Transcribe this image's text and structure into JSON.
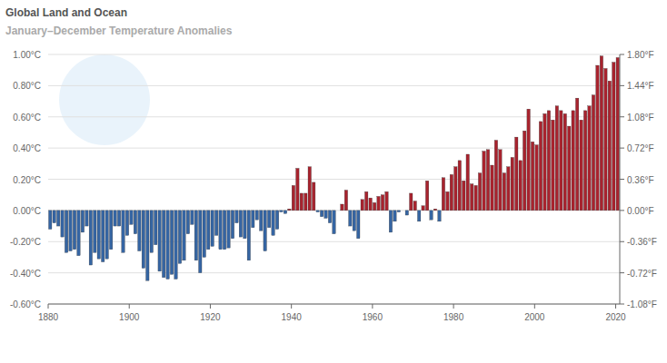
{
  "chart_data": {
    "type": "bar",
    "title": "Global Land and Ocean",
    "subtitle": "January–December Temperature Anomalies",
    "x": [
      1880,
      1881,
      1882,
      1883,
      1884,
      1885,
      1886,
      1887,
      1888,
      1889,
      1890,
      1891,
      1892,
      1893,
      1894,
      1895,
      1896,
      1897,
      1898,
      1899,
      1900,
      1901,
      1902,
      1903,
      1904,
      1905,
      1906,
      1907,
      1908,
      1909,
      1910,
      1911,
      1912,
      1913,
      1914,
      1915,
      1916,
      1917,
      1918,
      1919,
      1920,
      1921,
      1922,
      1923,
      1924,
      1925,
      1926,
      1927,
      1928,
      1929,
      1930,
      1931,
      1932,
      1933,
      1934,
      1935,
      1936,
      1937,
      1938,
      1939,
      1940,
      1941,
      1942,
      1943,
      1944,
      1945,
      1946,
      1947,
      1948,
      1949,
      1950,
      1951,
      1952,
      1953,
      1954,
      1955,
      1956,
      1957,
      1958,
      1959,
      1960,
      1961,
      1962,
      1963,
      1964,
      1965,
      1966,
      1967,
      1968,
      1969,
      1970,
      1971,
      1972,
      1973,
      1974,
      1975,
      1976,
      1977,
      1978,
      1979,
      1980,
      1981,
      1982,
      1983,
      1984,
      1985,
      1986,
      1987,
      1988,
      1989,
      1990,
      1991,
      1992,
      1993,
      1994,
      1995,
      1996,
      1997,
      1998,
      1999,
      2000,
      2001,
      2002,
      2003,
      2004,
      2005,
      2006,
      2007,
      2008,
      2009,
      2010,
      2011,
      2012,
      2013,
      2014,
      2015,
      2016,
      2017,
      2018,
      2019,
      2020
    ],
    "values": [
      -0.12,
      -0.08,
      -0.1,
      -0.17,
      -0.27,
      -0.26,
      -0.25,
      -0.29,
      -0.14,
      -0.1,
      -0.35,
      -0.27,
      -0.31,
      -0.33,
      -0.31,
      -0.25,
      -0.1,
      -0.1,
      -0.27,
      -0.16,
      -0.09,
      -0.15,
      -0.26,
      -0.37,
      -0.45,
      -0.27,
      -0.22,
      -0.39,
      -0.43,
      -0.44,
      -0.41,
      -0.44,
      -0.34,
      -0.32,
      -0.15,
      -0.09,
      -0.32,
      -0.4,
      -0.3,
      -0.25,
      -0.23,
      -0.16,
      -0.25,
      -0.25,
      -0.24,
      -0.18,
      -0.08,
      -0.17,
      -0.18,
      -0.32,
      -0.11,
      -0.06,
      -0.13,
      -0.26,
      -0.11,
      -0.16,
      -0.12,
      -0.01,
      -0.02,
      0.01,
      0.16,
      0.27,
      0.11,
      0.11,
      0.28,
      0.18,
      -0.01,
      -0.04,
      -0.05,
      -0.08,
      -0.15,
      0.0,
      0.04,
      0.13,
      -0.1,
      -0.13,
      -0.18,
      0.07,
      0.12,
      0.08,
      0.05,
      0.09,
      0.1,
      0.12,
      -0.14,
      -0.07,
      -0.01,
      0.0,
      -0.03,
      0.11,
      0.06,
      -0.07,
      0.03,
      0.19,
      -0.06,
      0.01,
      -0.07,
      0.21,
      0.12,
      0.23,
      0.28,
      0.32,
      0.19,
      0.36,
      0.17,
      0.16,
      0.24,
      0.38,
      0.39,
      0.29,
      0.45,
      0.39,
      0.24,
      0.28,
      0.34,
      0.47,
      0.32,
      0.51,
      0.65,
      0.44,
      0.42,
      0.57,
      0.62,
      0.64,
      0.58,
      0.67,
      0.64,
      0.62,
      0.54,
      0.64,
      0.72,
      0.58,
      0.64,
      0.67,
      0.74,
      0.93,
      0.99,
      0.91,
      0.83,
      0.95,
      0.98
    ],
    "colors": [
      "#3565a3",
      "#3565a3",
      "#3565a3",
      "#3565a3",
      "#3565a3",
      "#3565a3",
      "#3565a3",
      "#3565a3",
      "#3565a3",
      "#3565a3",
      "#3565a3",
      "#3565a3",
      "#3565a3",
      "#3565a3",
      "#3565a3",
      "#3565a3",
      "#3565a3",
      "#3565a3",
      "#3565a3",
      "#3565a3",
      "#3565a3",
      "#3565a3",
      "#3565a3",
      "#3565a3",
      "#3565a3",
      "#3565a3",
      "#3565a3",
      "#3565a3",
      "#3565a3",
      "#3565a3",
      "#3565a3",
      "#3565a3",
      "#3565a3",
      "#3565a3",
      "#3565a3",
      "#3565a3",
      "#3565a3",
      "#3565a3",
      "#3565a3",
      "#3565a3",
      "#3565a3",
      "#3565a3",
      "#3565a3",
      "#3565a3",
      "#3565a3",
      "#3565a3",
      "#3565a3",
      "#3565a3",
      "#3565a3",
      "#3565a3",
      "#3565a3",
      "#3565a3",
      "#3565a3",
      "#3565a3",
      "#3565a3",
      "#3565a3",
      "#3565a3",
      "#3565a3",
      "#3565a3",
      "#a8232e",
      "#a8232e",
      "#a8232e",
      "#a8232e",
      "#a8232e",
      "#a8232e",
      "#a8232e",
      "#3565a3",
      "#3565a3",
      "#3565a3",
      "#3565a3",
      "#3565a3",
      "#a8232e",
      "#a8232e",
      "#a8232e",
      "#3565a3",
      "#3565a3",
      "#3565a3",
      "#a8232e",
      "#a8232e",
      "#a8232e",
      "#a8232e",
      "#a8232e",
      "#a8232e",
      "#a8232e",
      "#3565a3",
      "#3565a3",
      "#3565a3",
      "#a8232e",
      "#3565a3",
      "#a8232e",
      "#a8232e",
      "#3565a3",
      "#a8232e",
      "#a8232e",
      "#3565a3",
      "#a8232e",
      "#3565a3",
      "#a8232e",
      "#a8232e",
      "#a8232e",
      "#a8232e",
      "#a8232e",
      "#a8232e",
      "#a8232e",
      "#a8232e",
      "#a8232e",
      "#a8232e",
      "#a8232e",
      "#a8232e",
      "#a8232e",
      "#a8232e",
      "#a8232e",
      "#a8232e",
      "#a8232e",
      "#a8232e",
      "#a8232e",
      "#a8232e",
      "#a8232e",
      "#a8232e",
      "#a8232e",
      "#a8232e",
      "#a8232e",
      "#a8232e",
      "#a8232e",
      "#a8232e",
      "#a8232e",
      "#a8232e",
      "#a8232e",
      "#a8232e",
      "#a8232e",
      "#a8232e",
      "#a8232e",
      "#a8232e",
      "#a8232e",
      "#a8232e",
      "#a8232e",
      "#a8232e",
      "#a8232e",
      "#a8232e",
      "#a8232e",
      "#a8232e"
    ],
    "xlim": [
      1880,
      2021
    ],
    "xticks": [
      1880,
      1900,
      1920,
      1940,
      1960,
      1980,
      2000,
      2020
    ],
    "ylim": [
      -0.6,
      1.0
    ],
    "yticks": [
      {
        "value": -0.6,
        "label": "-0.60°C"
      },
      {
        "value": -0.4,
        "label": "-0.40°C"
      },
      {
        "value": -0.2,
        "label": "-0.20°C"
      },
      {
        "value": 0,
        "label": "0.00°C"
      },
      {
        "value": 0.2,
        "label": "0.20°C"
      },
      {
        "value": 0.4,
        "label": "0.40°C"
      },
      {
        "value": 0.6,
        "label": "0.60°C"
      },
      {
        "value": 0.8,
        "label": "0.80°C"
      },
      {
        "value": 1.0,
        "label": "1.00°C"
      }
    ],
    "y2lim": [
      -1.08,
      1.8
    ],
    "y2ticks": [
      {
        "value": -1.08,
        "label": "-1.08°F"
      },
      {
        "value": -0.72,
        "label": "-0.72°F"
      },
      {
        "value": -0.36,
        "label": "-0.36°F"
      },
      {
        "value": 0,
        "label": "0.00°F"
      },
      {
        "value": 0.36,
        "label": "0.36°F"
      },
      {
        "value": 0.72,
        "label": "0.72°F"
      },
      {
        "value": 1.08,
        "label": "1.08°F"
      },
      {
        "value": 1.44,
        "label": "1.44°F"
      },
      {
        "value": 1.8,
        "label": "1.80°F"
      }
    ],
    "grid": true
  }
}
